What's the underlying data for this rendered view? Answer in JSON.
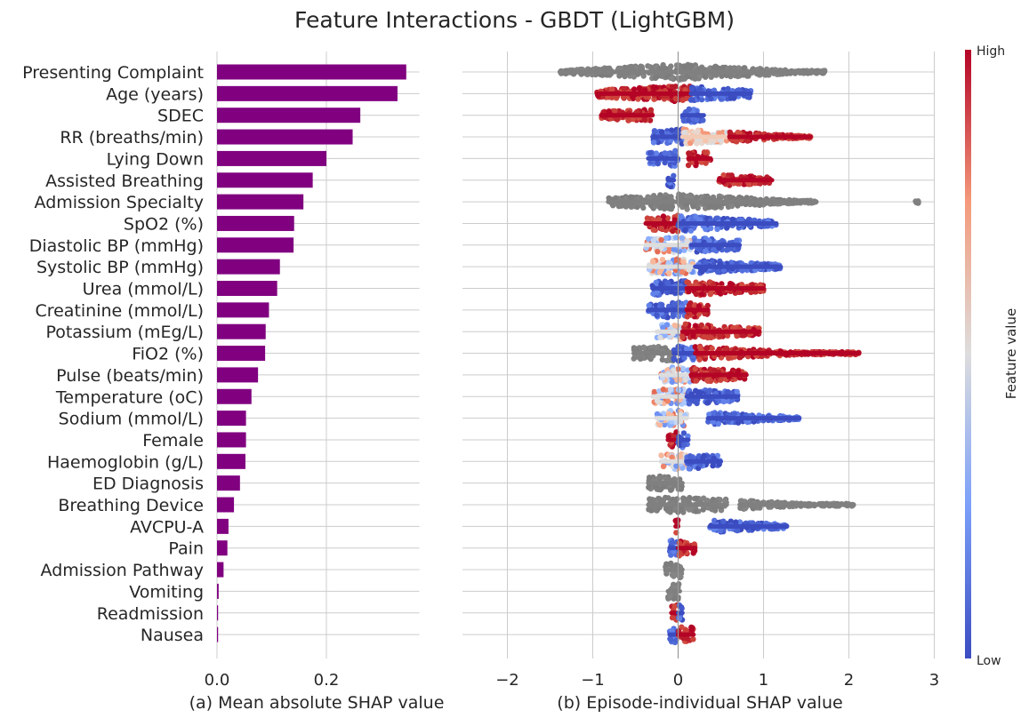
{
  "figure_title": "Feature Interactions - GBDT (LightGBM)",
  "colors": {
    "bar": "#800080",
    "grid": "#cccccc",
    "categorical": "#808080",
    "low": "#3b4cc0",
    "high": "#b40426"
  },
  "chart_data": [
    {
      "type": "bar",
      "orientation": "horizontal",
      "xlabel": "(a) Mean absolute SHAP value",
      "ylabel": "",
      "xlim": [
        0.0,
        0.37
      ],
      "xticks": [
        0.0,
        0.2
      ],
      "xtick_labels": [
        "0.0",
        "0.2"
      ],
      "grid": "on",
      "categories": [
        "Presenting Complaint",
        "Age (years)",
        "SDEC",
        "RR (breaths/min)",
        "Lying Down",
        "Assisted Breathing",
        "Admission Specialty",
        "SpO2 (%)",
        "Diastolic BP (mmHg)",
        "Systolic BP (mmHg)",
        "Urea (mmol/L)",
        "Creatinine (mmol/L)",
        "Potassium (mEg/L)",
        "FiO2 (%)",
        "Pulse (beats/min)",
        "Temperature (oC)",
        "Sodium (mmol/L)",
        "Female",
        "Haemoglobin (g/L)",
        "ED Diagnosis",
        "Breathing Device",
        "AVCPU-A",
        "Pain",
        "Admission Pathway",
        "Vomiting",
        "Readmission",
        "Nausea"
      ],
      "values": [
        0.346,
        0.33,
        0.262,
        0.248,
        0.2,
        0.175,
        0.158,
        0.141,
        0.14,
        0.115,
        0.11,
        0.095,
        0.089,
        0.088,
        0.075,
        0.063,
        0.053,
        0.053,
        0.052,
        0.042,
        0.031,
        0.021,
        0.019,
        0.012,
        0.003,
        0.002,
        0.002
      ]
    },
    {
      "type": "scatter",
      "subtype": "beeswarm",
      "xlabel": "(b) Episode-individual SHAP value",
      "ylabel": "",
      "xlim": [
        -2.5,
        3.0
      ],
      "xticks": [
        -2,
        -1,
        0,
        1,
        2,
        3
      ],
      "xtick_labels": [
        "−2",
        "−1",
        "0",
        "1",
        "2",
        "3"
      ],
      "grid": "on",
      "colorbar": {
        "label": "Feature value",
        "high_label": "High",
        "low_label": "Low",
        "colormap": "coolwarm"
      },
      "note": "Each row lists value ranges of the SHAP distribution; color 'low'/'high' refers to feature value, 'gray' = categorical",
      "rows": [
        {
          "feature": "Presenting Complaint",
          "segments": [
            {
              "range": [
                -1.38,
                1.72
              ],
              "color": "gray"
            }
          ]
        },
        {
          "feature": "Age (years)",
          "segments": [
            {
              "range": [
                -0.95,
                0.15
              ],
              "color": "high"
            },
            {
              "range": [
                0.15,
                0.85
              ],
              "color": "low"
            }
          ]
        },
        {
          "feature": "SDEC",
          "segments": [
            {
              "range": [
                -0.9,
                -0.3
              ],
              "color": "high"
            },
            {
              "range": [
                0.05,
                0.3
              ],
              "color": "low"
            }
          ]
        },
        {
          "feature": "RR (breaths/min)",
          "segments": [
            {
              "range": [
                -0.3,
                0.05
              ],
              "color": "low"
            },
            {
              "range": [
                0.05,
                0.6
              ],
              "color": "mid"
            },
            {
              "range": [
                0.6,
                1.55
              ],
              "color": "high"
            }
          ]
        },
        {
          "feature": "Lying Down",
          "segments": [
            {
              "range": [
                -0.35,
                0.0
              ],
              "color": "low"
            },
            {
              "range": [
                0.12,
                0.38
              ],
              "color": "high"
            }
          ]
        },
        {
          "feature": "Assisted Breathing",
          "segments": [
            {
              "range": [
                -0.12,
                -0.05
              ],
              "color": "low"
            },
            {
              "range": [
                0.48,
                1.1
              ],
              "color": "high"
            }
          ]
        },
        {
          "feature": "Admission Specialty",
          "segments": [
            {
              "range": [
                -0.82,
                1.62
              ],
              "color": "gray"
            },
            {
              "range": [
                2.78,
                2.82
              ],
              "color": "gray"
            }
          ]
        },
        {
          "feature": "SpO2 (%)",
          "segments": [
            {
              "range": [
                -0.38,
                0.0
              ],
              "color": "high"
            },
            {
              "range": [
                0.0,
                1.15
              ],
              "color": "low"
            }
          ]
        },
        {
          "feature": "Diastolic BP (mmHg)",
          "segments": [
            {
              "range": [
                -0.38,
                0.15
              ],
              "color": "mixed"
            },
            {
              "range": [
                0.15,
                0.72
              ],
              "color": "low"
            }
          ]
        },
        {
          "feature": "Systolic BP (mmHg)",
          "segments": [
            {
              "range": [
                -0.35,
                0.2
              ],
              "color": "mixed"
            },
            {
              "range": [
                0.2,
                1.2
              ],
              "color": "low"
            }
          ]
        },
        {
          "feature": "Urea (mmol/L)",
          "segments": [
            {
              "range": [
                -0.3,
                0.1
              ],
              "color": "low"
            },
            {
              "range": [
                0.1,
                1.0
              ],
              "color": "high"
            }
          ]
        },
        {
          "feature": "Creatinine (mmol/L)",
          "segments": [
            {
              "range": [
                -0.35,
                0.1
              ],
              "color": "low"
            },
            {
              "range": [
                0.1,
                0.35
              ],
              "color": "high"
            }
          ]
        },
        {
          "feature": "Potassium (mEg/L)",
          "segments": [
            {
              "range": [
                -0.25,
                0.05
              ],
              "color": "mixed"
            },
            {
              "range": [
                0.05,
                0.95
              ],
              "color": "high"
            }
          ]
        },
        {
          "feature": "FiO2 (%)",
          "segments": [
            {
              "range": [
                -0.52,
                -0.05
              ],
              "color": "gray"
            },
            {
              "range": [
                -0.05,
                0.2
              ],
              "color": "low"
            },
            {
              "range": [
                0.2,
                2.12
              ],
              "color": "high"
            }
          ]
        },
        {
          "feature": "Pulse (beats/min)",
          "segments": [
            {
              "range": [
                -0.2,
                0.15
              ],
              "color": "mixed"
            },
            {
              "range": [
                0.15,
                0.8
              ],
              "color": "high"
            }
          ]
        },
        {
          "feature": "Temperature (oC)",
          "segments": [
            {
              "range": [
                -0.3,
                0.1
              ],
              "color": "mixed"
            },
            {
              "range": [
                0.1,
                0.7
              ],
              "color": "low"
            }
          ]
        },
        {
          "feature": "Sodium (mmol/L)",
          "segments": [
            {
              "range": [
                -0.25,
                0.1
              ],
              "color": "mixed"
            },
            {
              "range": [
                0.35,
                1.42
              ],
              "color": "low"
            }
          ]
        },
        {
          "feature": "Female",
          "segments": [
            {
              "range": [
                -0.12,
                0.0
              ],
              "color": "high"
            },
            {
              "range": [
                0.0,
                0.12
              ],
              "color": "low"
            }
          ]
        },
        {
          "feature": "Haemoglobin (g/L)",
          "segments": [
            {
              "range": [
                -0.2,
                0.1
              ],
              "color": "mixed"
            },
            {
              "range": [
                0.1,
                0.5
              ],
              "color": "low"
            }
          ]
        },
        {
          "feature": "ED Diagnosis",
          "segments": [
            {
              "range": [
                -0.35,
                0.05
              ],
              "color": "gray"
            }
          ]
        },
        {
          "feature": "Breathing Device",
          "segments": [
            {
              "range": [
                -0.35,
                0.57
              ],
              "color": "gray"
            },
            {
              "range": [
                0.72,
                2.05
              ],
              "color": "gray"
            }
          ]
        },
        {
          "feature": "AVCPU-A",
          "segments": [
            {
              "range": [
                -0.03,
                0.0
              ],
              "color": "high"
            },
            {
              "range": [
                0.37,
                1.27
              ],
              "color": "low"
            }
          ]
        },
        {
          "feature": "Pain",
          "segments": [
            {
              "range": [
                -0.1,
                0.0
              ],
              "color": "low"
            },
            {
              "range": [
                0.0,
                0.2
              ],
              "color": "high"
            }
          ]
        },
        {
          "feature": "Admission Pathway",
          "segments": [
            {
              "range": [
                -0.15,
                0.05
              ],
              "color": "gray"
            }
          ]
        },
        {
          "feature": "Vomiting",
          "segments": [
            {
              "range": [
                -0.12,
                0.02
              ],
              "color": "gray"
            }
          ]
        },
        {
          "feature": "Readmission",
          "segments": [
            {
              "range": [
                -0.08,
                0.0
              ],
              "color": "high"
            },
            {
              "range": [
                0.0,
                0.05
              ],
              "color": "low"
            }
          ]
        },
        {
          "feature": "Nausea",
          "segments": [
            {
              "range": [
                -0.1,
                0.0
              ],
              "color": "low"
            },
            {
              "range": [
                0.0,
                0.18
              ],
              "color": "high"
            }
          ]
        }
      ]
    }
  ]
}
